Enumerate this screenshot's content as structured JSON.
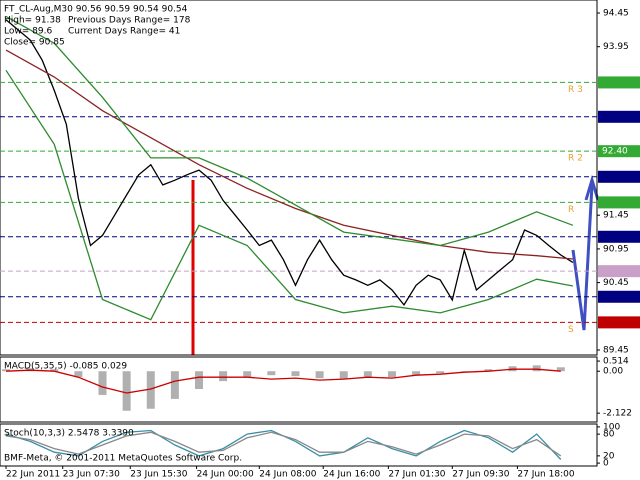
{
  "chart_data": [
    {
      "type": "line",
      "title": "FT_CL-Aug,M30  90.56 90.59 90.54 90.54",
      "info": [
        "High= 91.38",
        "Previous Days Range= 178",
        "Low= 89.6",
        "Current Days Range= 41",
        "Close= 90.85"
      ],
      "xlim": [
        -0.5,
        49
      ],
      "ylim": [
        89.376,
        94.643
      ],
      "xticks": [
        {
          "value": 0,
          "label": "22 Jun 2011"
        },
        {
          "value": 4.7,
          "label": "23 Jun 07:30"
        },
        {
          "value": 10.3,
          "label": "23 Jun 15:30"
        },
        {
          "value": 15.8,
          "label": "24 Jun 00:00"
        },
        {
          "value": 21,
          "label": "24 Jun 08:00"
        },
        {
          "value": 26.3,
          "label": "24 Jun 16:00"
        },
        {
          "value": 31.7,
          "label": "27 Jun 01:30"
        },
        {
          "value": 37,
          "label": "27 Jun 09:30"
        },
        {
          "value": 42.4,
          "label": "27 Jun 18:00"
        }
      ],
      "yticks": [
        94.45,
        93.95,
        91.45,
        90.95,
        90.45,
        89.45
      ],
      "tag_color": "#e8a030",
      "levels": [
        {
          "value": 93.42,
          "color": "#33aa33",
          "tag": "R 3"
        },
        {
          "value": 92.91,
          "color": "#000080"
        },
        {
          "value": 92.4,
          "label": "92.40",
          "color": "#33aa33",
          "tag": "R 2"
        },
        {
          "value": 92.02,
          "color": "#000080"
        },
        {
          "value": 91.64,
          "color": "#33aa33",
          "tag": "R"
        },
        {
          "value": 91.13,
          "color": "#000080"
        },
        {
          "value": 90.62,
          "color": "#c8a0c8"
        },
        {
          "value": 90.24,
          "color": "#000080"
        },
        {
          "value": 89.86,
          "color": "#c00000",
          "tag": "S"
        }
      ],
      "series": [
        {
          "name": "Close",
          "color": "#000000",
          "values": [
            94.35,
            94.2,
            94.05,
            93.75,
            93.3,
            92.8,
            91.7,
            91.0,
            91.15,
            91.45,
            91.75,
            92.05,
            92.2,
            91.9,
            91.97,
            92.05,
            92.12,
            91.97,
            91.67,
            91.45,
            91.23,
            91.0,
            91.08,
            90.79,
            90.41,
            90.79,
            91.08,
            90.79,
            90.56,
            90.49,
            90.41,
            90.49,
            90.34,
            90.12,
            90.41,
            90.56,
            90.49,
            90.19,
            90.93,
            90.34,
            90.49,
            90.64,
            90.79,
            91.23,
            91.15,
            91.0,
            90.86,
            90.75
          ]
        },
        {
          "name": "MA",
          "color": "#8b2323",
          "x": [
            0,
            4,
            8,
            12,
            16,
            20,
            24,
            28,
            32,
            36,
            40,
            44,
            47
          ],
          "values": [
            93.9,
            93.5,
            93.0,
            92.6,
            92.2,
            91.85,
            91.55,
            91.3,
            91.15,
            91.0,
            90.9,
            90.85,
            90.8
          ]
        },
        {
          "name": "Upper band",
          "color": "#2e8b2e",
          "x": [
            0,
            4,
            8,
            12,
            16,
            20,
            24,
            28,
            32,
            36,
            40,
            44,
            47
          ],
          "values": [
            94.4,
            94.0,
            93.2,
            92.3,
            92.3,
            92.0,
            91.6,
            91.2,
            91.1,
            91.0,
            91.2,
            91.5,
            91.3
          ]
        },
        {
          "name": "Lower band",
          "color": "#2e8b2e",
          "x": [
            0,
            4,
            8,
            12,
            16,
            20,
            24,
            28,
            32,
            36,
            40,
            44,
            47
          ],
          "values": [
            93.6,
            92.5,
            90.2,
            89.9,
            91.3,
            91.0,
            90.2,
            90.0,
            90.1,
            90.0,
            90.2,
            90.5,
            90.4
          ]
        }
      ]
    },
    {
      "type": "bar",
      "title": "MACD(5,35,5) -0.085 0.029",
      "xlim": [
        -0.5,
        49
      ],
      "ylim": [
        -2.57,
        0.72
      ],
      "yticks": [
        0.514,
        {
          "value": 0,
          "label": "0.00"
        },
        -2.122
      ],
      "x": [
        0,
        2,
        4,
        6,
        8,
        10,
        12,
        14,
        16,
        18,
        20,
        22,
        24,
        26,
        28,
        30,
        32,
        34,
        36,
        38,
        40,
        42,
        44,
        46
      ],
      "values": [
        0.1,
        0.15,
        0.1,
        -0.3,
        -1.2,
        -2.0,
        -1.9,
        -1.4,
        -0.9,
        -0.5,
        -0.3,
        -0.2,
        -0.25,
        -0.35,
        -0.4,
        -0.3,
        -0.3,
        -0.2,
        -0.1,
        0.0,
        0.1,
        0.25,
        0.3,
        0.2
      ],
      "color": "#b0b0b0",
      "signal": {
        "color": "#cc0000",
        "values": [
          0.0,
          0.05,
          0.0,
          -0.3,
          -0.8,
          -1.1,
          -0.9,
          -0.5,
          -0.3,
          -0.3,
          -0.3,
          -0.4,
          -0.35,
          -0.45,
          -0.4,
          -0.3,
          -0.35,
          -0.2,
          -0.15,
          -0.05,
          0.0,
          0.1,
          0.1,
          0.0
        ]
      }
    },
    {
      "type": "line",
      "title": "Stoch(10,3,3) 2.5478 3.3390",
      "note": "BMF-Meta, © 2001-2011 MetaQuotes Software Corp.",
      "xlim": [
        -0.5,
        49
      ],
      "ylim": [
        -8,
        108
      ],
      "yticks": [
        100,
        80,
        20,
        0
      ],
      "series": [
        {
          "name": "Main",
          "color": "#3a8fa8",
          "x": [
            0,
            2,
            4,
            6,
            8,
            10,
            12,
            14,
            16,
            18,
            20,
            22,
            24,
            26,
            28,
            30,
            32,
            34,
            36,
            38,
            40,
            42,
            44,
            46
          ],
          "values": [
            80,
            60,
            30,
            20,
            60,
            85,
            90,
            50,
            20,
            40,
            80,
            90,
            60,
            20,
            30,
            70,
            40,
            20,
            60,
            90,
            70,
            30,
            80,
            10
          ]
        },
        {
          "name": "Signal",
          "color": "#888888",
          "x": [
            0,
            2,
            4,
            6,
            8,
            10,
            12,
            14,
            16,
            18,
            20,
            22,
            24,
            26,
            28,
            30,
            32,
            34,
            36,
            38,
            40,
            42,
            44,
            46
          ],
          "values": [
            75,
            65,
            40,
            25,
            50,
            75,
            85,
            60,
            30,
            35,
            70,
            85,
            65,
            30,
            30,
            60,
            45,
            25,
            50,
            80,
            75,
            40,
            65,
            20
          ]
        }
      ]
    }
  ]
}
